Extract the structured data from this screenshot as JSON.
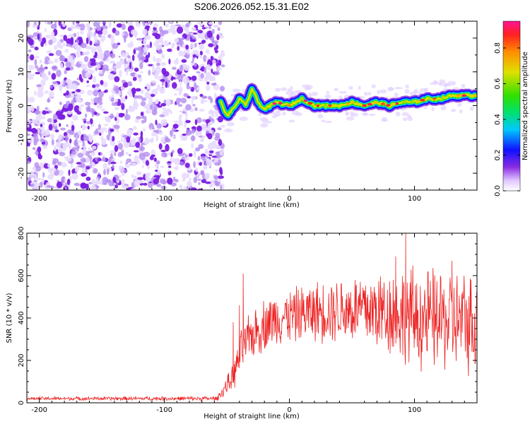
{
  "title": "S206.2026.052.15.31.E02",
  "chart_data": [
    {
      "type": "heatmap",
      "name": "spectrogram",
      "xlabel": "Height of straight line (km)",
      "ylabel": "Frequency (Hz)",
      "xlim": [
        -210,
        150
      ],
      "ylim": [
        -25,
        25
      ],
      "xticks": [
        -200,
        -100,
        0,
        100
      ],
      "yticks": [
        -20,
        -10,
        0,
        10,
        20
      ],
      "noise_region_x": [
        -210,
        -53
      ],
      "signal_start_x": -55,
      "signal_band_center_hz": [
        [
          -55,
          1
        ],
        [
          -50,
          -3
        ],
        [
          -45,
          -1
        ],
        [
          -40,
          2
        ],
        [
          -35,
          0
        ],
        [
          -30,
          5
        ],
        [
          -25,
          1
        ],
        [
          -20,
          -1
        ],
        [
          -10,
          1
        ],
        [
          0,
          0
        ],
        [
          10,
          2
        ],
        [
          20,
          0
        ],
        [
          30,
          0
        ],
        [
          40,
          0
        ],
        [
          50,
          1
        ],
        [
          60,
          0
        ],
        [
          70,
          1
        ],
        [
          80,
          0
        ],
        [
          90,
          1
        ],
        [
          100,
          1
        ],
        [
          110,
          2
        ],
        [
          120,
          2
        ],
        [
          130,
          3
        ],
        [
          140,
          3
        ],
        [
          150,
          3
        ]
      ],
      "colorbar": {
        "label": "Normalized spectral amplitude",
        "ticks": [
          0.0,
          0.2,
          0.4,
          0.6,
          0.8
        ],
        "range": [
          0,
          0.95
        ]
      }
    },
    {
      "type": "line",
      "name": "snr",
      "xlabel": "Height of straight line (km)",
      "ylabel": "SNR (10 * v/v)",
      "xlim": [
        -210,
        150
      ],
      "ylim": [
        0,
        800
      ],
      "xticks": [
        -200,
        -100,
        0,
        100
      ],
      "yticks": [
        0,
        200,
        400,
        600,
        800
      ],
      "color": "#ee2222",
      "baseline_level": 20,
      "envelope": [
        [
          -210,
          20
        ],
        [
          -58,
          20
        ],
        [
          -45,
          120
        ],
        [
          -38,
          250
        ],
        [
          -30,
          320
        ],
        [
          -20,
          370
        ],
        [
          -10,
          400
        ],
        [
          0,
          410
        ],
        [
          20,
          430
        ],
        [
          40,
          440
        ],
        [
          60,
          440
        ],
        [
          80,
          430
        ],
        [
          100,
          400
        ],
        [
          120,
          390
        ],
        [
          150,
          380
        ]
      ],
      "spread": [
        [
          -210,
          8
        ],
        [
          -58,
          10
        ],
        [
          -45,
          60
        ],
        [
          -38,
          100
        ],
        [
          -30,
          110
        ],
        [
          -20,
          120
        ],
        [
          0,
          120
        ],
        [
          40,
          150
        ],
        [
          80,
          200
        ],
        [
          100,
          230
        ],
        [
          150,
          230
        ]
      ],
      "peaks": [
        [
          -37,
          610
        ],
        [
          -45,
          380
        ],
        [
          -40,
          460
        ],
        [
          93,
          800
        ],
        [
          85,
          690
        ],
        [
          130,
          670
        ]
      ]
    }
  ]
}
